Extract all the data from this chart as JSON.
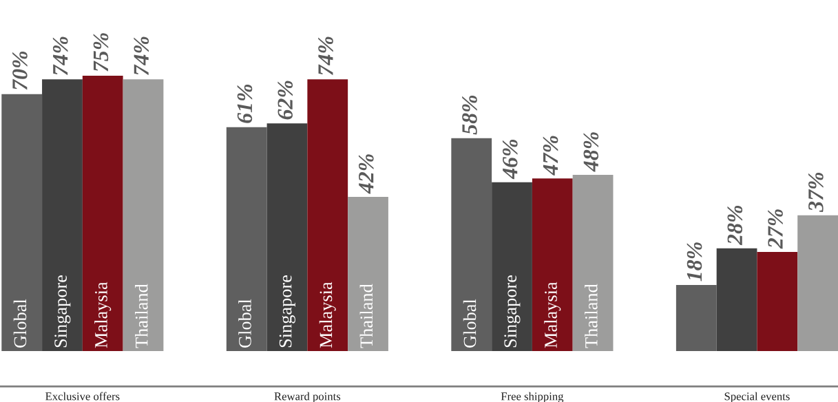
{
  "chart_data": {
    "type": "bar",
    "categories": [
      "Exclusive offers",
      "Reward points",
      "Free shipping",
      "Special events"
    ],
    "series": [
      {
        "name": "Global",
        "color": "#5f5f5f",
        "values": [
          70,
          61,
          58,
          18
        ],
        "value_labels": [
          "70%",
          "61%",
          "58%",
          "18%"
        ]
      },
      {
        "name": "Singapore",
        "color": "#404040",
        "values": [
          74,
          62,
          46,
          28
        ],
        "value_labels": [
          "74%",
          "62%",
          "46%",
          "28%"
        ]
      },
      {
        "name": "Malaysia",
        "color": "#7d0f18",
        "values": [
          75,
          74,
          47,
          27
        ],
        "value_labels": [
          "75%",
          "74%",
          "47%",
          "27%"
        ]
      },
      {
        "name": "Thailand",
        "color": "#9d9d9c",
        "values": [
          74,
          42,
          48,
          37
        ],
        "value_labels": [
          "74%",
          "42%",
          "48%",
          "37%"
        ]
      }
    ],
    "grid": false,
    "legend": false
  }
}
